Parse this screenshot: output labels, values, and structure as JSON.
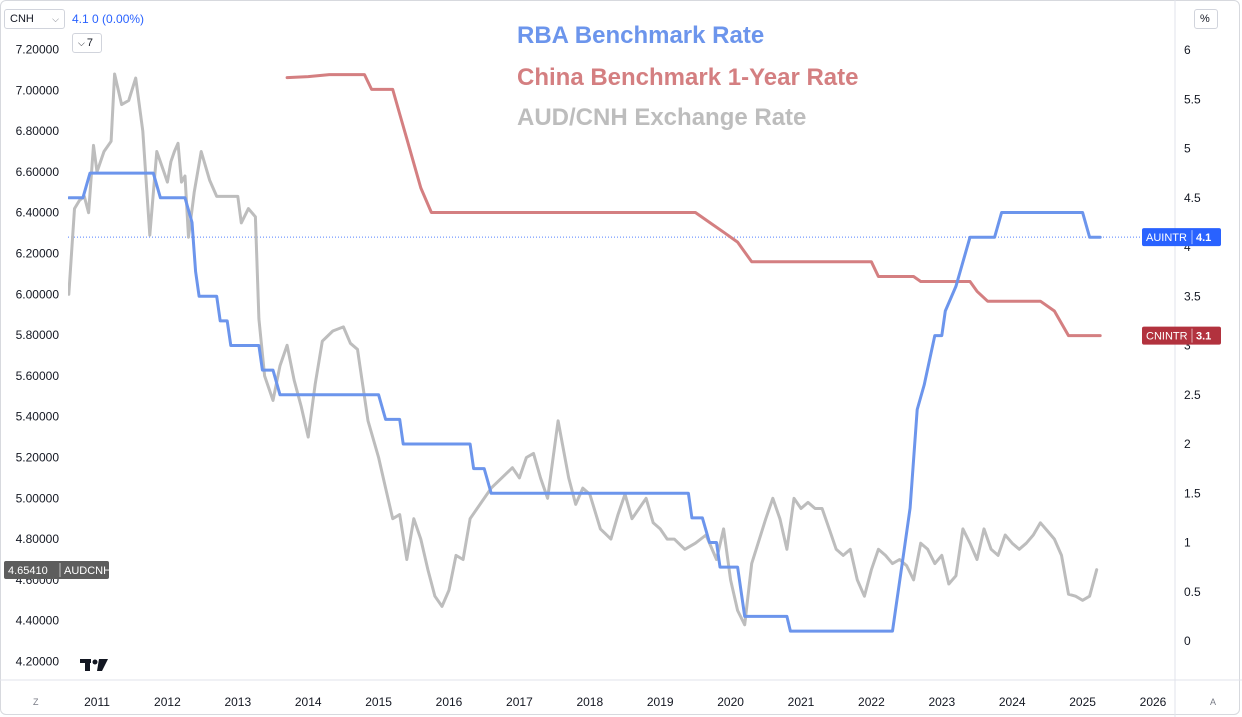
{
  "header": {
    "symbol": "CNH",
    "value_line": "4.1 0 (0.00%)",
    "collapse_label": "7",
    "scale_label": "%",
    "corner_left": "Z",
    "corner_right": "A"
  },
  "colors": {
    "rba": "#6c95ec",
    "china": "#d47f81",
    "aud": "#bdbdbd",
    "rba_badge": "#2962ff",
    "china_badge": "#b2323e",
    "aud_badge": "#5d5d5d"
  },
  "chart_data": {
    "type": "line",
    "title_lines": [
      "RBA Benchmark Rate",
      "China Benchmark 1-Year Rate",
      "AUD/CNH Exchange Rate"
    ],
    "x_ticks": [
      "2011",
      "2012",
      "2013",
      "2014",
      "2015",
      "2016",
      "2017",
      "2018",
      "2019",
      "2020",
      "2021",
      "2022",
      "2023",
      "2024",
      "2025",
      "2026"
    ],
    "left_axis": {
      "ticks": [
        "7.20000",
        "7.00000",
        "6.80000",
        "6.60000",
        "6.40000",
        "6.20000",
        "6.00000",
        "5.80000",
        "5.60000",
        "5.40000",
        "5.20000",
        "5.00000",
        "4.80000",
        "4.60000",
        "4.40000",
        "4.20000"
      ],
      "range": [
        4.2,
        7.2
      ]
    },
    "right_axis": {
      "ticks": [
        "6",
        "5.5",
        "5",
        "4.5",
        "4",
        "3.5",
        "3",
        "2.5",
        "2",
        "1.5",
        "1",
        "0.5",
        "0"
      ],
      "range": [
        0,
        6
      ]
    },
    "series": [
      {
        "name": "RBA Benchmark Rate",
        "axis": "right",
        "badge": {
          "ticker": "AUINTR",
          "value": "4.1"
        },
        "points": [
          [
            2010.6,
            4.5
          ],
          [
            2010.8,
            4.5
          ],
          [
            2010.9,
            4.75
          ],
          [
            2011.8,
            4.75
          ],
          [
            2011.9,
            4.5
          ],
          [
            2012.25,
            4.5
          ],
          [
            2012.35,
            4.25
          ],
          [
            2012.4,
            3.75
          ],
          [
            2012.45,
            3.5
          ],
          [
            2012.7,
            3.5
          ],
          [
            2012.75,
            3.25
          ],
          [
            2012.85,
            3.25
          ],
          [
            2012.9,
            3.0
          ],
          [
            2013.3,
            3.0
          ],
          [
            2013.35,
            2.75
          ],
          [
            2013.5,
            2.75
          ],
          [
            2013.6,
            2.5
          ],
          [
            2014.0,
            2.5
          ],
          [
            2015.0,
            2.5
          ],
          [
            2015.1,
            2.25
          ],
          [
            2015.3,
            2.25
          ],
          [
            2015.35,
            2.0
          ],
          [
            2016.3,
            2.0
          ],
          [
            2016.35,
            1.75
          ],
          [
            2016.5,
            1.75
          ],
          [
            2016.6,
            1.5
          ],
          [
            2019.4,
            1.5
          ],
          [
            2019.45,
            1.25
          ],
          [
            2019.6,
            1.25
          ],
          [
            2019.7,
            1.0
          ],
          [
            2019.8,
            1.0
          ],
          [
            2019.85,
            0.75
          ],
          [
            2020.1,
            0.75
          ],
          [
            2020.2,
            0.25
          ],
          [
            2020.8,
            0.25
          ],
          [
            2020.85,
            0.1
          ],
          [
            2022.3,
            0.1
          ],
          [
            2022.35,
            0.35
          ],
          [
            2022.45,
            0.85
          ],
          [
            2022.55,
            1.35
          ],
          [
            2022.65,
            2.35
          ],
          [
            2022.75,
            2.6
          ],
          [
            2022.9,
            3.1
          ],
          [
            2023.0,
            3.1
          ],
          [
            2023.05,
            3.35
          ],
          [
            2023.2,
            3.6
          ],
          [
            2023.4,
            4.1
          ],
          [
            2023.75,
            4.1
          ],
          [
            2023.85,
            4.35
          ],
          [
            2024.8,
            4.35
          ],
          [
            2025.0,
            4.35
          ],
          [
            2025.1,
            4.1
          ],
          [
            2025.25,
            4.1
          ]
        ]
      },
      {
        "name": "China Benchmark 1-Year Rate",
        "axis": "right",
        "badge": {
          "ticker": "CNINTR",
          "value": "3.1"
        },
        "points": [
          [
            2013.7,
            5.72
          ],
          [
            2014.0,
            5.73
          ],
          [
            2014.3,
            5.75
          ],
          [
            2014.8,
            5.75
          ],
          [
            2014.9,
            5.6
          ],
          [
            2015.2,
            5.6
          ],
          [
            2015.3,
            5.35
          ],
          [
            2015.4,
            5.1
          ],
          [
            2015.5,
            4.85
          ],
          [
            2015.6,
            4.6
          ],
          [
            2015.75,
            4.35
          ],
          [
            2016.0,
            4.35
          ],
          [
            2018.5,
            4.35
          ],
          [
            2019.5,
            4.35
          ],
          [
            2019.7,
            4.25
          ],
          [
            2019.9,
            4.15
          ],
          [
            2020.1,
            4.05
          ],
          [
            2020.3,
            3.85
          ],
          [
            2021.0,
            3.85
          ],
          [
            2022.0,
            3.85
          ],
          [
            2022.1,
            3.7
          ],
          [
            2022.6,
            3.7
          ],
          [
            2022.7,
            3.65
          ],
          [
            2023.4,
            3.65
          ],
          [
            2023.5,
            3.55
          ],
          [
            2023.65,
            3.45
          ],
          [
            2024.4,
            3.45
          ],
          [
            2024.6,
            3.35
          ],
          [
            2024.8,
            3.1
          ],
          [
            2025.25,
            3.1
          ]
        ]
      },
      {
        "name": "AUD/CNH Exchange Rate",
        "axis": "left",
        "badge": {
          "ticker": "AUDCNH",
          "value": "4.65410"
        },
        "points": [
          [
            2010.6,
            6.0
          ],
          [
            2010.68,
            6.42
          ],
          [
            2010.75,
            6.46
          ],
          [
            2010.82,
            6.48
          ],
          [
            2010.88,
            6.4
          ],
          [
            2010.95,
            6.73
          ],
          [
            2011.0,
            6.6
          ],
          [
            2011.1,
            6.7
          ],
          [
            2011.2,
            6.75
          ],
          [
            2011.25,
            7.08
          ],
          [
            2011.35,
            6.93
          ],
          [
            2011.45,
            6.95
          ],
          [
            2011.55,
            7.06
          ],
          [
            2011.65,
            6.8
          ],
          [
            2011.75,
            6.29
          ],
          [
            2011.85,
            6.7
          ],
          [
            2011.95,
            6.6
          ],
          [
            2012.0,
            6.55
          ],
          [
            2012.05,
            6.65
          ],
          [
            2012.1,
            6.7
          ],
          [
            2012.15,
            6.74
          ],
          [
            2012.2,
            6.55
          ],
          [
            2012.25,
            6.58
          ],
          [
            2012.3,
            6.28
          ],
          [
            2012.38,
            6.5
          ],
          [
            2012.48,
            6.7
          ],
          [
            2012.6,
            6.56
          ],
          [
            2012.7,
            6.48
          ],
          [
            2012.85,
            6.48
          ],
          [
            2013.0,
            6.48
          ],
          [
            2013.05,
            6.35
          ],
          [
            2013.15,
            6.42
          ],
          [
            2013.25,
            6.38
          ],
          [
            2013.3,
            5.88
          ],
          [
            2013.38,
            5.6
          ],
          [
            2013.5,
            5.48
          ],
          [
            2013.6,
            5.65
          ],
          [
            2013.7,
            5.75
          ],
          [
            2013.8,
            5.58
          ],
          [
            2013.9,
            5.45
          ],
          [
            2014.0,
            5.3
          ],
          [
            2014.1,
            5.56
          ],
          [
            2014.2,
            5.77
          ],
          [
            2014.35,
            5.82
          ],
          [
            2014.5,
            5.84
          ],
          [
            2014.6,
            5.76
          ],
          [
            2014.7,
            5.73
          ],
          [
            2014.85,
            5.38
          ],
          [
            2015.0,
            5.2
          ],
          [
            2015.1,
            5.05
          ],
          [
            2015.2,
            4.9
          ],
          [
            2015.3,
            4.92
          ],
          [
            2015.4,
            4.7
          ],
          [
            2015.5,
            4.9
          ],
          [
            2015.6,
            4.8
          ],
          [
            2015.7,
            4.65
          ],
          [
            2015.8,
            4.52
          ],
          [
            2015.9,
            4.47
          ],
          [
            2016.0,
            4.55
          ],
          [
            2016.1,
            4.72
          ],
          [
            2016.2,
            4.7
          ],
          [
            2016.3,
            4.9
          ],
          [
            2016.6,
            5.05
          ],
          [
            2016.9,
            5.15
          ],
          [
            2017.0,
            5.1
          ],
          [
            2017.1,
            5.2
          ],
          [
            2017.2,
            5.22
          ],
          [
            2017.3,
            5.1
          ],
          [
            2017.4,
            5.0
          ],
          [
            2017.55,
            5.38
          ],
          [
            2017.7,
            5.1
          ],
          [
            2017.8,
            4.97
          ],
          [
            2017.9,
            5.05
          ],
          [
            2018.0,
            5.02
          ],
          [
            2018.15,
            4.85
          ],
          [
            2018.3,
            4.8
          ],
          [
            2018.4,
            4.92
          ],
          [
            2018.5,
            5.02
          ],
          [
            2018.6,
            4.9
          ],
          [
            2018.7,
            4.95
          ],
          [
            2018.8,
            5.0
          ],
          [
            2018.9,
            4.88
          ],
          [
            2019.0,
            4.85
          ],
          [
            2019.1,
            4.8
          ],
          [
            2019.2,
            4.8
          ],
          [
            2019.35,
            4.75
          ],
          [
            2019.5,
            4.78
          ],
          [
            2019.65,
            4.82
          ],
          [
            2019.8,
            4.7
          ],
          [
            2019.9,
            4.85
          ],
          [
            2020.0,
            4.6
          ],
          [
            2020.1,
            4.45
          ],
          [
            2020.2,
            4.38
          ],
          [
            2020.3,
            4.68
          ],
          [
            2020.5,
            4.9
          ],
          [
            2020.6,
            5.0
          ],
          [
            2020.7,
            4.9
          ],
          [
            2020.8,
            4.75
          ],
          [
            2020.9,
            5.0
          ],
          [
            2021.0,
            4.95
          ],
          [
            2021.1,
            4.98
          ],
          [
            2021.2,
            4.95
          ],
          [
            2021.3,
            4.95
          ],
          [
            2021.4,
            4.85
          ],
          [
            2021.5,
            4.75
          ],
          [
            2021.6,
            4.72
          ],
          [
            2021.7,
            4.75
          ],
          [
            2021.8,
            4.6
          ],
          [
            2021.9,
            4.52
          ],
          [
            2022.0,
            4.65
          ],
          [
            2022.1,
            4.75
          ],
          [
            2022.2,
            4.72
          ],
          [
            2022.3,
            4.68
          ],
          [
            2022.4,
            4.7
          ],
          [
            2022.5,
            4.67
          ],
          [
            2022.6,
            4.6
          ],
          [
            2022.7,
            4.78
          ],
          [
            2022.8,
            4.75
          ],
          [
            2022.9,
            4.68
          ],
          [
            2023.0,
            4.72
          ],
          [
            2023.1,
            4.58
          ],
          [
            2023.2,
            4.62
          ],
          [
            2023.3,
            4.85
          ],
          [
            2023.4,
            4.78
          ],
          [
            2023.5,
            4.7
          ],
          [
            2023.6,
            4.85
          ],
          [
            2023.7,
            4.75
          ],
          [
            2023.8,
            4.72
          ],
          [
            2023.9,
            4.82
          ],
          [
            2024.0,
            4.78
          ],
          [
            2024.1,
            4.75
          ],
          [
            2024.2,
            4.78
          ],
          [
            2024.3,
            4.82
          ],
          [
            2024.4,
            4.88
          ],
          [
            2024.5,
            4.84
          ],
          [
            2024.6,
            4.8
          ],
          [
            2024.7,
            4.72
          ],
          [
            2024.8,
            4.53
          ],
          [
            2024.9,
            4.52
          ],
          [
            2025.0,
            4.5
          ],
          [
            2025.1,
            4.52
          ],
          [
            2025.2,
            4.65
          ]
        ]
      }
    ],
    "reference_line": {
      "axis": "right",
      "value": 4.1
    }
  }
}
